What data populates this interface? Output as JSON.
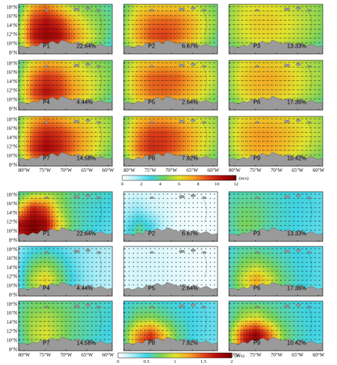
{
  "figure": {
    "top_block": {
      "panels": [
        {
          "id": "P1",
          "percent": "22.64%",
          "field": [
            [
              0.3,
              0.6,
              0.68,
              0.55,
              0.42,
              0.38,
              0.35,
              0.3
            ],
            [
              0.4,
              0.78,
              0.88,
              0.8,
              0.62,
              0.48,
              0.4,
              0.33
            ],
            [
              0.45,
              0.85,
              0.95,
              0.9,
              0.72,
              0.55,
              0.42,
              0.3
            ],
            [
              0.3,
              0.6,
              0.68,
              0.6,
              0.48,
              0.4,
              0.32,
              0.25
            ]
          ]
        },
        {
          "id": "P2",
          "percent": "6.67%",
          "field": [
            [
              0.35,
              0.5,
              0.55,
              0.55,
              0.55,
              0.5,
              0.42,
              0.35
            ],
            [
              0.4,
              0.6,
              0.7,
              0.72,
              0.7,
              0.62,
              0.5,
              0.4
            ],
            [
              0.42,
              0.62,
              0.75,
              0.78,
              0.72,
              0.62,
              0.48,
              0.35
            ],
            [
              0.32,
              0.45,
              0.52,
              0.55,
              0.52,
              0.45,
              0.38,
              0.28
            ]
          ]
        },
        {
          "id": "P3",
          "percent": "13.33%",
          "field": [
            [
              0.4,
              0.48,
              0.5,
              0.5,
              0.48,
              0.45,
              0.42,
              0.38
            ],
            [
              0.42,
              0.5,
              0.55,
              0.55,
              0.52,
              0.48,
              0.44,
              0.4
            ],
            [
              0.4,
              0.48,
              0.52,
              0.52,
              0.5,
              0.46,
              0.42,
              0.36
            ],
            [
              0.3,
              0.38,
              0.4,
              0.42,
              0.4,
              0.38,
              0.34,
              0.28
            ]
          ]
        },
        {
          "id": "P4",
          "percent": "4.44%",
          "field": [
            [
              0.32,
              0.52,
              0.6,
              0.58,
              0.5,
              0.45,
              0.4,
              0.35
            ],
            [
              0.38,
              0.68,
              0.8,
              0.75,
              0.62,
              0.52,
              0.45,
              0.38
            ],
            [
              0.42,
              0.75,
              0.88,
              0.8,
              0.66,
              0.55,
              0.45,
              0.35
            ],
            [
              0.3,
              0.55,
              0.62,
              0.58,
              0.48,
              0.42,
              0.35,
              0.28
            ]
          ]
        },
        {
          "id": "P5",
          "percent": "2.64%",
          "field": [
            [
              0.38,
              0.52,
              0.58,
              0.6,
              0.58,
              0.52,
              0.46,
              0.4
            ],
            [
              0.42,
              0.62,
              0.72,
              0.74,
              0.72,
              0.64,
              0.54,
              0.44
            ],
            [
              0.42,
              0.6,
              0.7,
              0.72,
              0.68,
              0.6,
              0.5,
              0.4
            ],
            [
              0.32,
              0.45,
              0.5,
              0.52,
              0.5,
              0.45,
              0.4,
              0.32
            ]
          ]
        },
        {
          "id": "P6",
          "percent": "17.36%",
          "field": [
            [
              0.4,
              0.5,
              0.55,
              0.55,
              0.52,
              0.48,
              0.44,
              0.4
            ],
            [
              0.42,
              0.55,
              0.6,
              0.62,
              0.58,
              0.52,
              0.46,
              0.42
            ],
            [
              0.4,
              0.52,
              0.58,
              0.58,
              0.55,
              0.5,
              0.44,
              0.38
            ],
            [
              0.3,
              0.4,
              0.44,
              0.45,
              0.42,
              0.4,
              0.36,
              0.3
            ]
          ]
        },
        {
          "id": "P7",
          "percent": "14.58%",
          "field": [
            [
              0.38,
              0.58,
              0.66,
              0.62,
              0.55,
              0.5,
              0.45,
              0.4
            ],
            [
              0.42,
              0.72,
              0.84,
              0.8,
              0.7,
              0.6,
              0.5,
              0.42
            ],
            [
              0.45,
              0.8,
              0.92,
              0.85,
              0.72,
              0.6,
              0.48,
              0.38
            ],
            [
              0.32,
              0.6,
              0.66,
              0.62,
              0.52,
              0.45,
              0.38,
              0.3
            ]
          ]
        },
        {
          "id": "P8",
          "percent": "7.92%",
          "field": [
            [
              0.38,
              0.55,
              0.62,
              0.62,
              0.58,
              0.52,
              0.46,
              0.4
            ],
            [
              0.42,
              0.66,
              0.78,
              0.78,
              0.72,
              0.62,
              0.52,
              0.44
            ],
            [
              0.44,
              0.7,
              0.82,
              0.8,
              0.72,
              0.62,
              0.5,
              0.4
            ],
            [
              0.32,
              0.52,
              0.58,
              0.56,
              0.5,
              0.45,
              0.4,
              0.32
            ]
          ]
        },
        {
          "id": "P9",
          "percent": "10.42%",
          "field": [
            [
              0.42,
              0.52,
              0.56,
              0.56,
              0.54,
              0.5,
              0.46,
              0.42
            ],
            [
              0.44,
              0.58,
              0.64,
              0.64,
              0.6,
              0.55,
              0.5,
              0.44
            ],
            [
              0.42,
              0.56,
              0.62,
              0.62,
              0.58,
              0.52,
              0.46,
              0.4
            ],
            [
              0.32,
              0.42,
              0.46,
              0.46,
              0.44,
              0.42,
              0.38,
              0.32
            ]
          ]
        }
      ],
      "colorbar": {
        "ticks": [
          "0",
          "2",
          "4",
          "6",
          "8",
          "10",
          "12"
        ],
        "unit": "(m/s)",
        "range": [
          0,
          12
        ]
      }
    },
    "bottom_block": {
      "panels": [
        {
          "id": "P1",
          "percent": "22.64%",
          "field": [
            [
              0.3,
              0.4,
              0.42,
              0.38,
              0.32,
              0.3,
              0.28,
              0.26
            ],
            [
              0.55,
              0.85,
              0.75,
              0.45,
              0.32,
              0.28,
              0.26,
              0.24
            ],
            [
              0.9,
              1.0,
              0.92,
              0.55,
              0.35,
              0.28,
              0.25,
              0.22
            ],
            [
              0.8,
              0.98,
              0.85,
              0.4,
              0.28,
              0.25,
              0.22,
              0.2
            ]
          ]
        },
        {
          "id": "P2",
          "percent": "6.67%",
          "field": [
            [
              0.05,
              0.06,
              0.05,
              0.04,
              0.03,
              0.03,
              0.02,
              0.02
            ],
            [
              0.1,
              0.15,
              0.08,
              0.05,
              0.03,
              0.02,
              0.02,
              0.02
            ],
            [
              0.18,
              0.3,
              0.22,
              0.08,
              0.03,
              0.02,
              0.02,
              0.02
            ],
            [
              0.22,
              0.38,
              0.28,
              0.1,
              0.03,
              0.02,
              0.02,
              0.02
            ]
          ]
        },
        {
          "id": "P3",
          "percent": "13.33%",
          "field": [
            [
              0.28,
              0.3,
              0.3,
              0.28,
              0.26,
              0.25,
              0.24,
              0.22
            ],
            [
              0.3,
              0.35,
              0.34,
              0.3,
              0.27,
              0.25,
              0.24,
              0.22
            ],
            [
              0.3,
              0.38,
              0.36,
              0.3,
              0.27,
              0.25,
              0.23,
              0.22
            ],
            [
              0.25,
              0.32,
              0.3,
              0.26,
              0.24,
              0.22,
              0.22,
              0.2
            ]
          ]
        },
        {
          "id": "P4",
          "percent": "4.44%",
          "field": [
            [
              0.15,
              0.22,
              0.25,
              0.22,
              0.18,
              0.15,
              0.12,
              0.1
            ],
            [
              0.2,
              0.35,
              0.4,
              0.32,
              0.22,
              0.15,
              0.12,
              0.1
            ],
            [
              0.22,
              0.45,
              0.55,
              0.4,
              0.25,
              0.16,
              0.12,
              0.1
            ],
            [
              0.2,
              0.4,
              0.45,
              0.32,
              0.2,
              0.14,
              0.1,
              0.08
            ]
          ]
        },
        {
          "id": "P5",
          "percent": "2.64%",
          "field": [
            [
              0.04,
              0.05,
              0.05,
              0.04,
              0.03,
              0.03,
              0.02,
              0.02
            ],
            [
              0.05,
              0.06,
              0.06,
              0.05,
              0.04,
              0.03,
              0.02,
              0.02
            ],
            [
              0.05,
              0.06,
              0.06,
              0.05,
              0.04,
              0.03,
              0.02,
              0.02
            ],
            [
              0.04,
              0.05,
              0.05,
              0.04,
              0.03,
              0.03,
              0.02,
              0.02
            ]
          ]
        },
        {
          "id": "P6",
          "percent": "17.36%",
          "field": [
            [
              0.26,
              0.3,
              0.3,
              0.28,
              0.26,
              0.25,
              0.24,
              0.22
            ],
            [
              0.28,
              0.38,
              0.42,
              0.36,
              0.3,
              0.26,
              0.24,
              0.22
            ],
            [
              0.3,
              0.48,
              0.62,
              0.5,
              0.35,
              0.28,
              0.24,
              0.22
            ],
            [
              0.26,
              0.42,
              0.55,
              0.42,
              0.3,
              0.25,
              0.22,
              0.2
            ]
          ]
        },
        {
          "id": "P7",
          "percent": "14.58%",
          "field": [
            [
              0.3,
              0.35,
              0.36,
              0.34,
              0.32,
              0.3,
              0.28,
              0.26
            ],
            [
              0.32,
              0.42,
              0.45,
              0.4,
              0.34,
              0.3,
              0.28,
              0.26
            ],
            [
              0.3,
              0.45,
              0.5,
              0.42,
              0.34,
              0.3,
              0.27,
              0.24
            ],
            [
              0.26,
              0.38,
              0.42,
              0.36,
              0.3,
              0.27,
              0.24,
              0.22
            ]
          ]
        },
        {
          "id": "P8",
          "percent": "7.92%",
          "field": [
            [
              0.25,
              0.28,
              0.28,
              0.26,
              0.25,
              0.24,
              0.22,
              0.2
            ],
            [
              0.28,
              0.38,
              0.4,
              0.34,
              0.28,
              0.25,
              0.22,
              0.2
            ],
            [
              0.35,
              0.65,
              0.78,
              0.55,
              0.35,
              0.26,
              0.22,
              0.2
            ],
            [
              0.3,
              0.72,
              0.9,
              0.62,
              0.32,
              0.24,
              0.2,
              0.18
            ]
          ]
        },
        {
          "id": "P9",
          "percent": "10.42%",
          "field": [
            [
              0.28,
              0.32,
              0.32,
              0.3,
              0.28,
              0.26,
              0.25,
              0.24
            ],
            [
              0.3,
              0.45,
              0.5,
              0.4,
              0.32,
              0.28,
              0.25,
              0.24
            ],
            [
              0.4,
              0.8,
              0.95,
              0.7,
              0.4,
              0.3,
              0.26,
              0.24
            ],
            [
              0.35,
              0.85,
              1.0,
              0.75,
              0.38,
              0.28,
              0.24,
              0.22
            ]
          ]
        }
      ],
      "colorbar": {
        "ticks": [
          "0",
          "0.5",
          "1",
          "1.5",
          "2"
        ],
        "unit": "(m/s)",
        "range": [
          0,
          2
        ]
      }
    },
    "lat_ticks": [
      "18°N",
      "16°N",
      "14°N",
      "12°N",
      "10°N",
      "8°N"
    ],
    "lon_ticks": [
      "80°W",
      "75°W",
      "70°W",
      "65°W",
      "60°W"
    ],
    "colormap": [
      "#ffffff",
      "#a6ecf7",
      "#3fd3e3",
      "#7ad35a",
      "#e2e22c",
      "#f5a623",
      "#e24a1b",
      "#b50e0e",
      "#7a0000"
    ]
  }
}
